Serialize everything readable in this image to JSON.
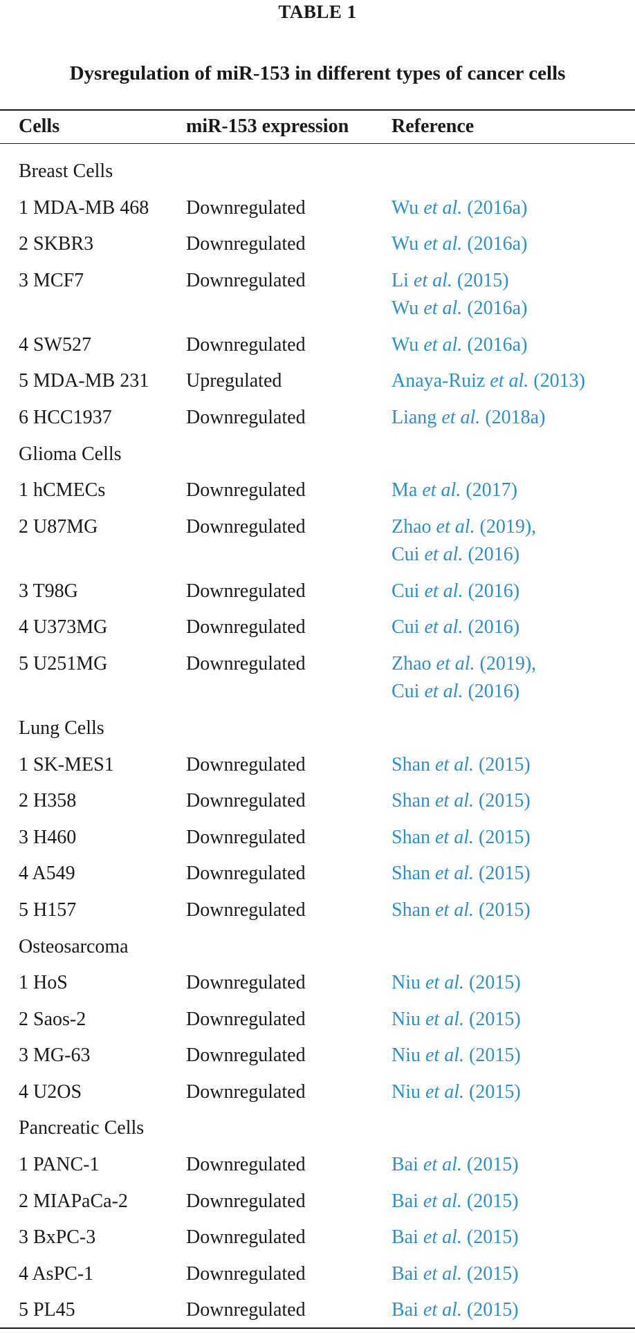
{
  "table_label": "TABLE 1",
  "table_title": "Dysregulation of miR-153 in different types of cancer cells",
  "columns": {
    "cells": "Cells",
    "expression": "miR-153 expression",
    "reference": "Reference"
  },
  "colors": {
    "text": "#1a1a1a",
    "reference_link": "#2b8fcf"
  },
  "rows": [
    {
      "type": "section",
      "cells": "Breast Cells"
    },
    {
      "type": "data",
      "cells": "1 MDA-MB 468",
      "expression": "Downregulated",
      "refs": [
        {
          "author": "Wu",
          "etal": "et al.",
          "year": "(2016a)"
        }
      ]
    },
    {
      "type": "data",
      "cells": "2 SKBR3",
      "expression": "Downregulated",
      "refs": [
        {
          "author": "Wu",
          "etal": "et al.",
          "year": "(2016a)"
        }
      ]
    },
    {
      "type": "data",
      "cells": "3 MCF7",
      "expression": "Downregulated",
      "refs": [
        {
          "author": "Li",
          "etal": "et al.",
          "year": "(2015)"
        },
        {
          "author": "Wu",
          "etal": "et al.",
          "year": "(2016a)"
        }
      ]
    },
    {
      "type": "data",
      "cells": "4 SW527",
      "expression": "Downregulated",
      "refs": [
        {
          "author": "Wu",
          "etal": "et al.",
          "year": "(2016a)"
        }
      ]
    },
    {
      "type": "data",
      "cells": "5 MDA-MB 231",
      "expression": "Upregulated",
      "refs": [
        {
          "author": "Anaya-Ruiz",
          "etal": "et al.",
          "year": "(2013)"
        }
      ]
    },
    {
      "type": "data",
      "cells": "6 HCC1937",
      "expression": "Downregulated",
      "refs": [
        {
          "author": "Liang",
          "etal": "et al.",
          "year": "(2018a)"
        }
      ]
    },
    {
      "type": "section",
      "cells": "Glioma Cells"
    },
    {
      "type": "data",
      "cells": "1 hCMECs",
      "expression": "Downregulated",
      "refs": [
        {
          "author": "Ma",
          "etal": "et al.",
          "year": "(2017)"
        }
      ]
    },
    {
      "type": "data",
      "cells": "2 U87MG",
      "expression": "Downregulated",
      "refs": [
        {
          "author": "Zhao",
          "etal": "et al.",
          "year": "(2019),"
        },
        {
          "author": "Cui",
          "etal": "et al.",
          "year": "(2016)"
        }
      ]
    },
    {
      "type": "data",
      "cells": "3 T98G",
      "expression": "Downregulated",
      "refs": [
        {
          "author": "Cui",
          "etal": "et al.",
          "year": "(2016)"
        }
      ]
    },
    {
      "type": "data",
      "cells": "4 U373MG",
      "expression": "Downregulated",
      "refs": [
        {
          "author": "Cui",
          "etal": "et al.",
          "year": "(2016)"
        }
      ]
    },
    {
      "type": "data",
      "cells": "5 U251MG",
      "expression": "Downregulated",
      "refs": [
        {
          "author": "Zhao",
          "etal": "et al.",
          "year": "(2019),"
        },
        {
          "author": "Cui",
          "etal": "et al.",
          "year": "(2016)"
        }
      ]
    },
    {
      "type": "section",
      "cells": "Lung Cells"
    },
    {
      "type": "data",
      "cells": "1 SK-MES1",
      "expression": "Downregulated",
      "refs": [
        {
          "author": "Shan",
          "etal": "et al.",
          "year": "(2015)"
        }
      ]
    },
    {
      "type": "data",
      "cells": "2 H358",
      "expression": "Downregulated",
      "refs": [
        {
          "author": "Shan",
          "etal": "et al.",
          "year": "(2015)"
        }
      ]
    },
    {
      "type": "data",
      "cells": "3 H460",
      "expression": "Downregulated",
      "refs": [
        {
          "author": "Shan",
          "etal": "et al.",
          "year": "(2015)"
        }
      ]
    },
    {
      "type": "data",
      "cells": "4 A549",
      "expression": "Downregulated",
      "refs": [
        {
          "author": "Shan",
          "etal": "et al.",
          "year": "(2015)"
        }
      ]
    },
    {
      "type": "data",
      "cells": "5 H157",
      "expression": "Downregulated",
      "refs": [
        {
          "author": "Shan",
          "etal": "et al.",
          "year": "(2015)"
        }
      ]
    },
    {
      "type": "section",
      "cells": "Osteosarcoma"
    },
    {
      "type": "data",
      "cells": "1 HoS",
      "expression": "Downregulated",
      "refs": [
        {
          "author": "Niu",
          "etal": "et al.",
          "year": "(2015)"
        }
      ]
    },
    {
      "type": "data",
      "cells": "2 Saos-2",
      "expression": "Downregulated",
      "refs": [
        {
          "author": "Niu",
          "etal": "et al.",
          "year": "(2015)"
        }
      ]
    },
    {
      "type": "data",
      "cells": "3 MG-63",
      "expression": "Downregulated",
      "refs": [
        {
          "author": "Niu",
          "etal": "et al.",
          "year": "(2015)"
        }
      ]
    },
    {
      "type": "data",
      "cells": "4 U2OS",
      "expression": "Downregulated",
      "refs": [
        {
          "author": "Niu",
          "etal": "et al.",
          "year": "(2015)"
        }
      ]
    },
    {
      "type": "section",
      "cells": "Pancreatic Cells"
    },
    {
      "type": "data",
      "cells": "1 PANC-1",
      "expression": "Downregulated",
      "refs": [
        {
          "author": "Bai",
          "etal": "et al.",
          "year": "(2015)"
        }
      ]
    },
    {
      "type": "data",
      "cells": "2 MIAPaCa-2",
      "expression": "Downregulated",
      "refs": [
        {
          "author": "Bai",
          "etal": "et al.",
          "year": "(2015)"
        }
      ]
    },
    {
      "type": "data",
      "cells": "3 BxPC-3",
      "expression": "Downregulated",
      "refs": [
        {
          "author": "Bai",
          "etal": "et al.",
          "year": "(2015)"
        }
      ]
    },
    {
      "type": "data",
      "cells": "4 AsPC-1",
      "expression": "Downregulated",
      "refs": [
        {
          "author": "Bai",
          "etal": "et al.",
          "year": "(2015)"
        }
      ]
    },
    {
      "type": "data",
      "cells": "5 PL45",
      "expression": "Downregulated",
      "refs": [
        {
          "author": "Bai",
          "etal": "et al.",
          "year": "(2015)"
        }
      ]
    }
  ]
}
